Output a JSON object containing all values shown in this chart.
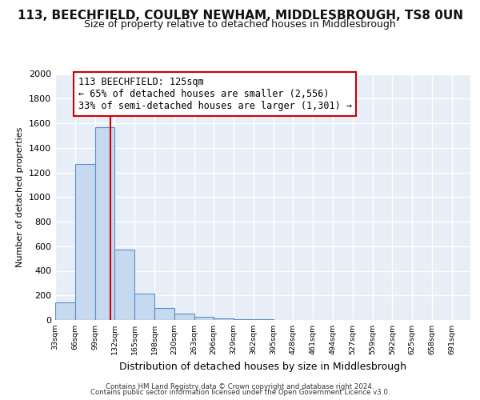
{
  "title": "113, BEECHFIELD, COULBY NEWHAM, MIDDLESBROUGH, TS8 0UN",
  "subtitle": "Size of property relative to detached houses in Middlesbrough",
  "xlabel": "Distribution of detached houses by size in Middlesbrough",
  "ylabel": "Number of detached properties",
  "footer_line1": "Contains HM Land Registry data © Crown copyright and database right 2024.",
  "footer_line2": "Contains public sector information licensed under the Open Government Licence v3.0.",
  "annotation_lines": [
    "113 BEECHFIELD: 125sqm",
    "← 65% of detached houses are smaller (2,556)",
    "33% of semi-detached houses are larger (1,301) →"
  ],
  "property_size": 125,
  "bar_left_edges": [
    33,
    66,
    99,
    132,
    165,
    198,
    231,
    264,
    297,
    330,
    363,
    396,
    429,
    462,
    495,
    528,
    561,
    594,
    627,
    660
  ],
  "bar_heights": [
    140,
    1270,
    1570,
    570,
    215,
    95,
    50,
    25,
    15,
    8,
    4,
    3,
    2,
    1,
    1,
    1,
    0,
    0,
    0,
    0
  ],
  "bin_width": 33,
  "bar_color": "#c5d9f0",
  "bar_edge_color": "#5b8fc9",
  "vline_color": "#cc0000",
  "annotation_box_edge_color": "#cc0000",
  "annotation_bg": "#ffffff",
  "ylim": [
    0,
    2000
  ],
  "yticks": [
    0,
    200,
    400,
    600,
    800,
    1000,
    1200,
    1400,
    1600,
    1800,
    2000
  ],
  "x_tick_labels": [
    "33sqm",
    "66sqm",
    "99sqm",
    "132sqm",
    "165sqm",
    "198sqm",
    "230sqm",
    "263sqm",
    "296sqm",
    "329sqm",
    "362sqm",
    "395sqm",
    "428sqm",
    "461sqm",
    "494sqm",
    "527sqm",
    "559sqm",
    "592sqm",
    "625sqm",
    "658sqm",
    "691sqm"
  ],
  "xlim_left": 33,
  "xlim_right": 724,
  "bg_color": "#e8eef7",
  "grid_color": "#ffffff",
  "title_fontsize": 11,
  "subtitle_fontsize": 9
}
